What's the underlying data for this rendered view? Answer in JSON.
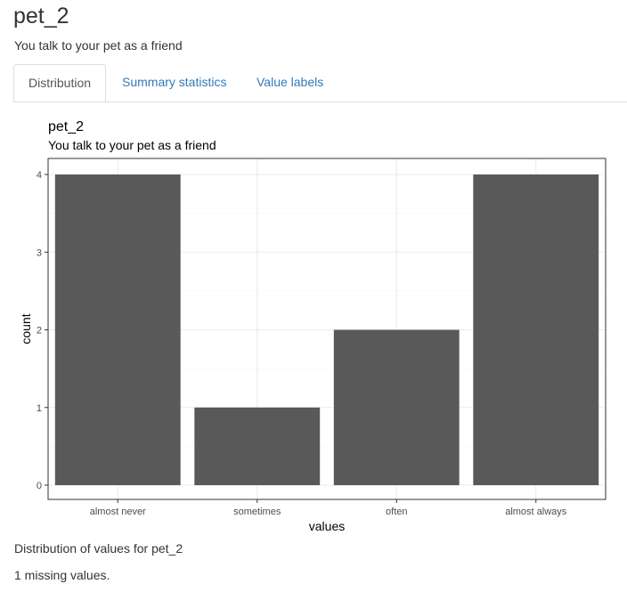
{
  "page": {
    "title": "pet_2",
    "subtitle": "You talk to your pet as a friend"
  },
  "tabs": [
    {
      "label": "Distribution",
      "active": true
    },
    {
      "label": "Summary statistics",
      "active": false
    },
    {
      "label": "Value labels",
      "active": false
    }
  ],
  "chart_data": {
    "type": "bar",
    "title": "pet_2",
    "subtitle": "You talk to your pet as a friend",
    "categories": [
      "almost never",
      "sometimes",
      "often",
      "almost always"
    ],
    "values": [
      4,
      1,
      2,
      4
    ],
    "xlabel": "values",
    "ylabel": "count",
    "ylim": [
      0,
      4
    ],
    "yticks": [
      0,
      1,
      2,
      3,
      4
    ],
    "grid": true,
    "bar_color": "#595959"
  },
  "footer": {
    "caption": "Distribution of values for pet_2",
    "missing": "1 missing values."
  },
  "colors": {
    "link": "#337ab7",
    "text": "#333333"
  }
}
